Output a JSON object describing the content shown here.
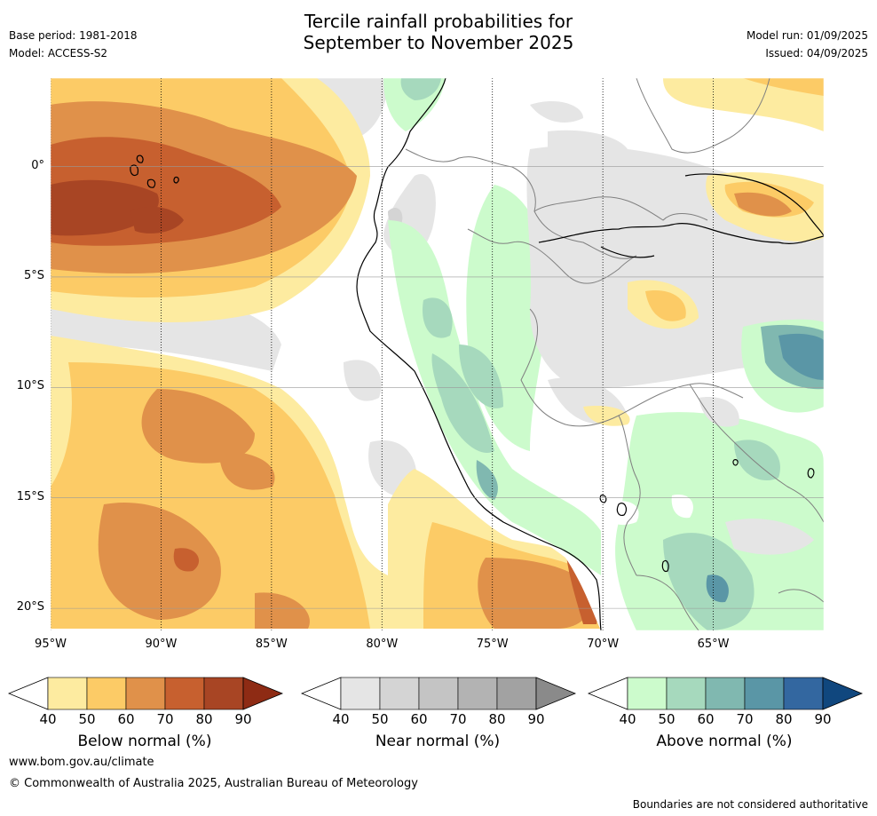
{
  "title_line1": "Tercile rainfall probabilities for",
  "title_line2": "September to November 2025",
  "base_period": "Base period: 1981-2018",
  "model": "Model: ACCESS-S2",
  "model_run": "Model run: 01/09/2025",
  "issued": "Issued: 04/09/2025",
  "map": {
    "lon_range": [
      -95,
      -60
    ],
    "lat_range": [
      -21,
      4
    ],
    "lat_ticks": [
      "0°",
      "5°S",
      "10°S",
      "15°S",
      "20°S"
    ],
    "lon_ticks": [
      "95°W",
      "90°W",
      "85°W",
      "80°W",
      "75°W",
      "70°W",
      "65°W"
    ],
    "colors": {
      "below": [
        "#fdeba0",
        "#fccb66",
        "#e0914a",
        "#c7602f",
        "#a84524",
        "#8e2b14"
      ],
      "near": [
        "#e5e5e5",
        "#d4d4d4",
        "#c4c4c4",
        "#b3b3b3",
        "#a2a2a2",
        "#8a8a8a"
      ],
      "above": [
        "#ccfbcc",
        "#a6d9bd",
        "#80b8b0",
        "#5a96a6",
        "#3367a0",
        "#10477e"
      ]
    }
  },
  "colorbars": [
    {
      "id": "below",
      "label": "Below normal (%)",
      "ticks": [
        "40",
        "50",
        "60",
        "70",
        "80",
        "90"
      ]
    },
    {
      "id": "near",
      "label": "Near normal (%)",
      "ticks": [
        "40",
        "50",
        "60",
        "70",
        "80",
        "90"
      ]
    },
    {
      "id": "above",
      "label": "Above normal (%)",
      "ticks": [
        "40",
        "50",
        "60",
        "70",
        "80",
        "90"
      ]
    }
  ],
  "website": "www.bom.gov.au/climate",
  "copyright": "© Commonwealth of Australia 2025, Australian Bureau of Meteorology",
  "disclaimer": "Boundaries are not considered authoritative"
}
